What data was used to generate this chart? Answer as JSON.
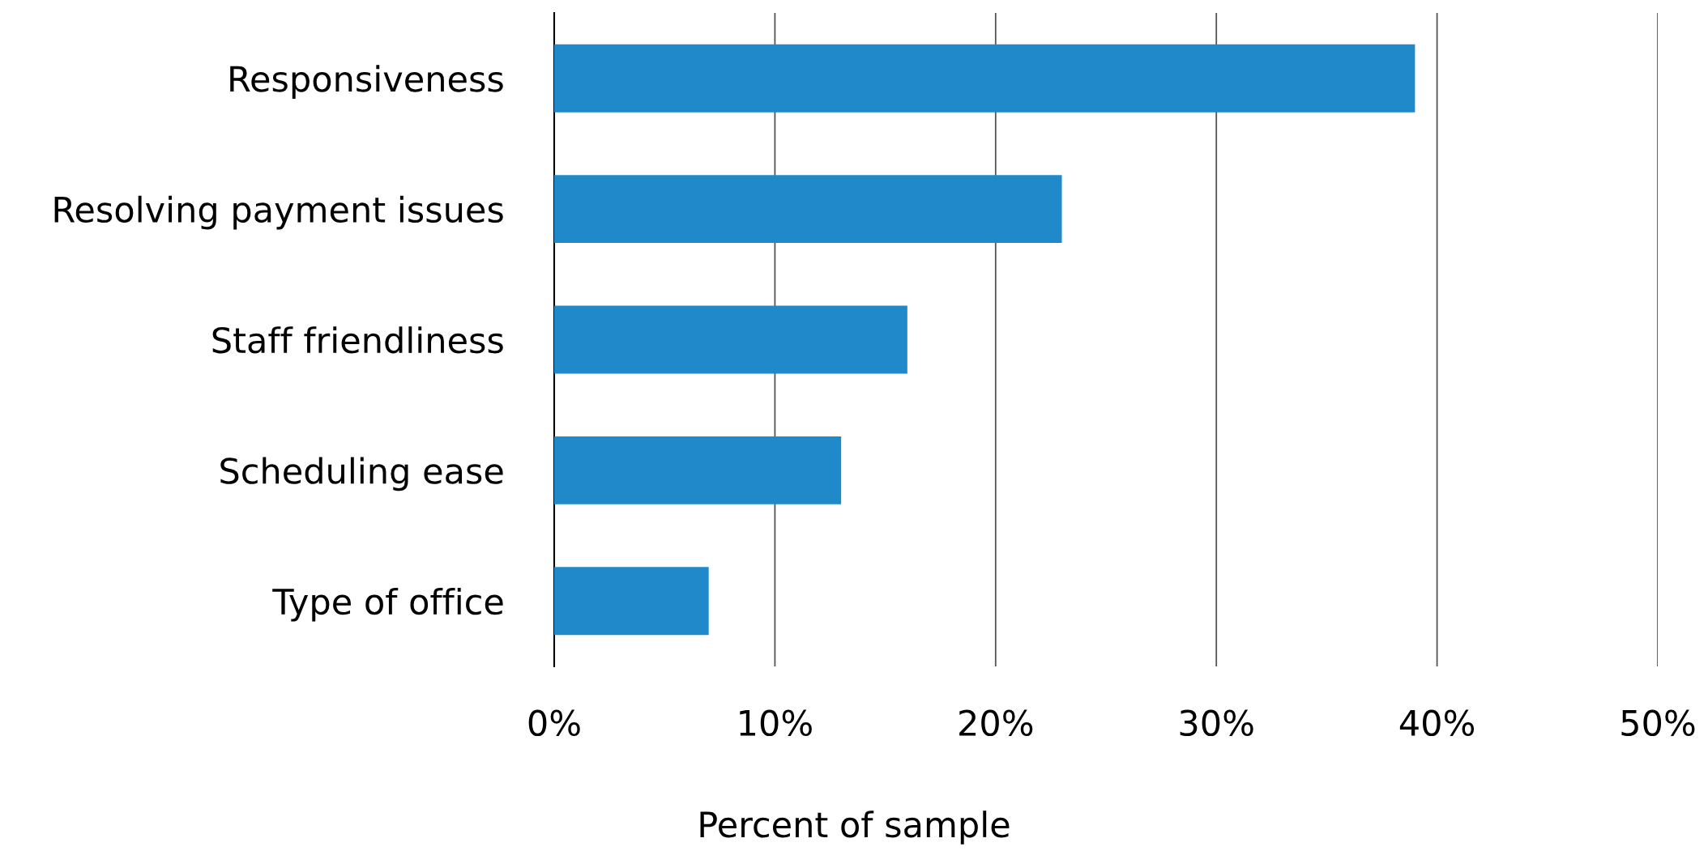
{
  "chart_data": {
    "type": "bar",
    "orientation": "horizontal",
    "categories": [
      "Responsiveness",
      "Resolving payment issues",
      "Staff friendliness",
      "Scheduling ease",
      "Type of office"
    ],
    "values": [
      39,
      23,
      16,
      13,
      7
    ],
    "color": "#2089c9",
    "xlim": [
      0,
      50
    ],
    "xticks": [
      {
        "value": 0,
        "label": "0%"
      },
      {
        "value": 10,
        "label": "10%"
      },
      {
        "value": 20,
        "label": "20%"
      },
      {
        "value": 30,
        "label": "30%"
      },
      {
        "value": 40,
        "label": "40%"
      },
      {
        "value": 50,
        "label": "50%"
      }
    ],
    "xlabel": "Percent of sample",
    "grid": "x",
    "legend": false
  }
}
